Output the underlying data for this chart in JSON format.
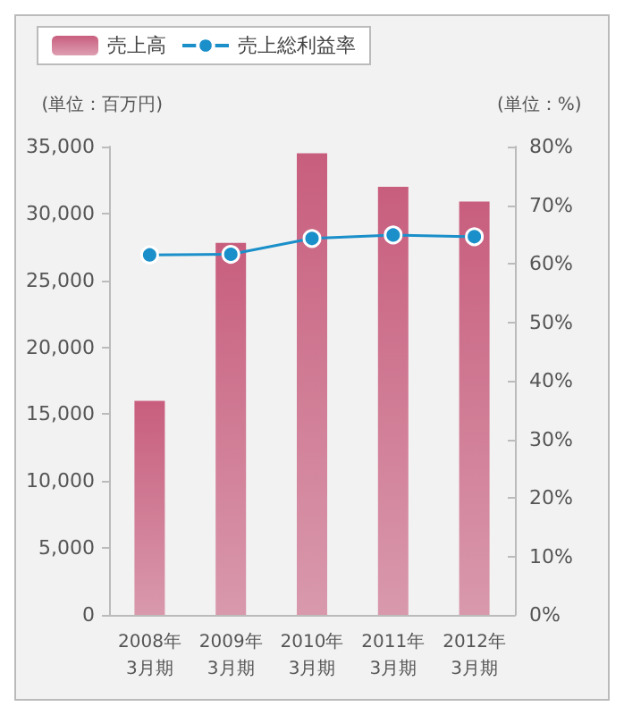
{
  "chart_data": {
    "type": "bar",
    "categories": [
      "2008年\n3月期",
      "2009年\n3月期",
      "2010年\n3月期",
      "2011年\n3月期",
      "2012年\n3月期"
    ],
    "series": [
      {
        "name": "売上高",
        "color": "#c85e7e",
        "values": [
          16000,
          27800,
          34500,
          32000,
          30900
        ]
      },
      {
        "name": "売上総利益率",
        "type": "line",
        "axis": "y2",
        "color": "#1a8fc9",
        "values": [
          61.5,
          61.6,
          64.3,
          64.9,
          64.6
        ]
      }
    ],
    "ylabel": "(単位：百万円)",
    "y2label": "(単位：%)",
    "ylim": [
      0,
      35000
    ],
    "yticks": [
      0,
      {
        "value": 5000,
        "label": "5,000"
      },
      {
        "value": 10000,
        "label": "10,000"
      },
      {
        "value": 15000,
        "label": "15,000"
      },
      {
        "value": 20000,
        "label": "20,000"
      },
      {
        "value": 25000,
        "label": "25,000"
      },
      {
        "value": 30000,
        "label": "30,000"
      },
      {
        "value": 35000,
        "label": "35,000"
      }
    ],
    "y2lim": [
      0,
      80
    ],
    "y2ticks": [
      {
        "value": 0,
        "label": "0%"
      },
      {
        "value": 10,
        "label": "10%"
      },
      {
        "value": 20,
        "label": "20%"
      },
      {
        "value": 30,
        "label": "30%"
      },
      {
        "value": 40,
        "label": "40%"
      },
      {
        "value": 50,
        "label": "50%"
      },
      {
        "value": 60,
        "label": "60%"
      },
      {
        "value": 70,
        "label": "70%"
      },
      {
        "value": 80,
        "label": "80%"
      }
    ],
    "legend": "top left",
    "grid": false,
    "marker": "circle"
  }
}
